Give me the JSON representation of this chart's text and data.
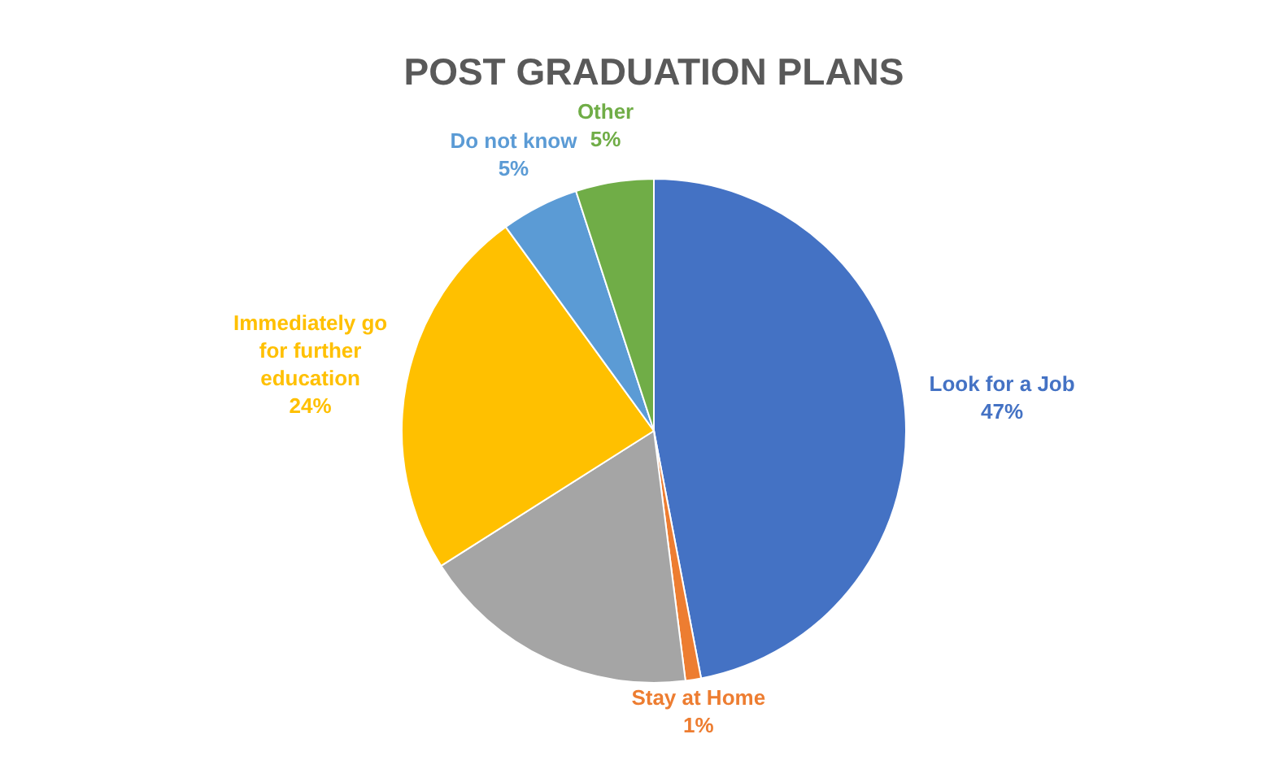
{
  "chart_data": {
    "type": "pie",
    "title": "POST GRADUATION PLANS",
    "categories": [
      "Look for a Job",
      "Stay at Home",
      null,
      "Immediately go for further education",
      "Do not know",
      "Other"
    ],
    "values": [
      47,
      1,
      18,
      24,
      5,
      5
    ],
    "colors": [
      "#4472c4",
      "#ed7d31",
      "#a5a5a5",
      "#ffc000",
      "#5b9bd5",
      "#70ad47"
    ],
    "value_labels": [
      "47%",
      "1%",
      null,
      "24%",
      "5%",
      "5%"
    ]
  }
}
